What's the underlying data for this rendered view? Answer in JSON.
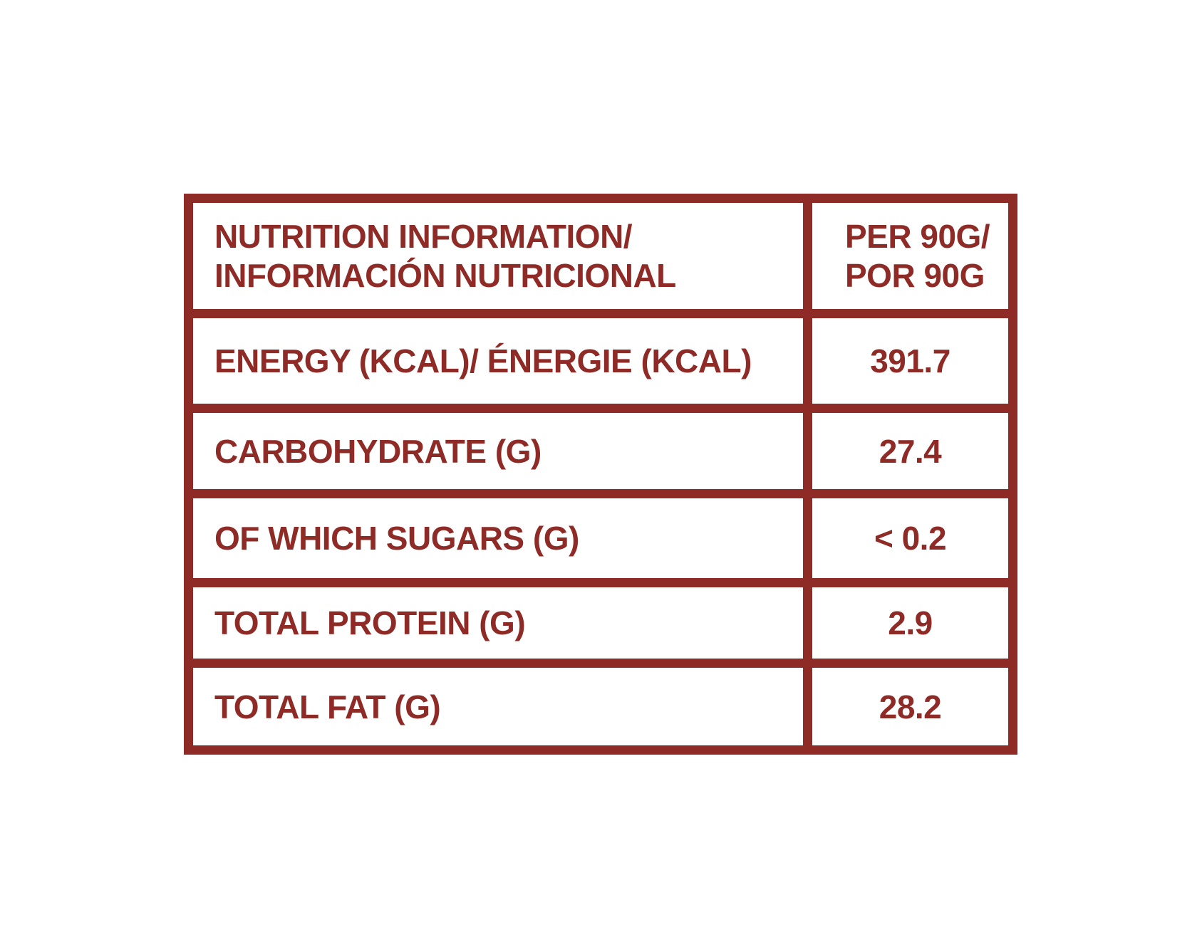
{
  "colors": {
    "accent_maroon": "#8f2b26",
    "background": "#ffffff"
  },
  "table": {
    "header": {
      "label_lines": [
        "NUTRITION INFORMATION/",
        "INFORMACIÓN NUTRICIONAL"
      ],
      "value_lines": [
        "PER 90G/",
        "POR 90G"
      ]
    },
    "rows": [
      {
        "label": "ENERGY (KCAL)/ ÉNERGIE (KCAL)",
        "value": "391.7"
      },
      {
        "label": "CARBOHYDRATE (G)",
        "value": "27.4"
      },
      {
        "label": "OF WHICH SUGARS (G)",
        "value": "< 0.2"
      },
      {
        "label": "TOTAL PROTEIN (G)",
        "value": "2.9"
      },
      {
        "label": "TOTAL FAT (G)",
        "value": "28.2"
      }
    ]
  }
}
